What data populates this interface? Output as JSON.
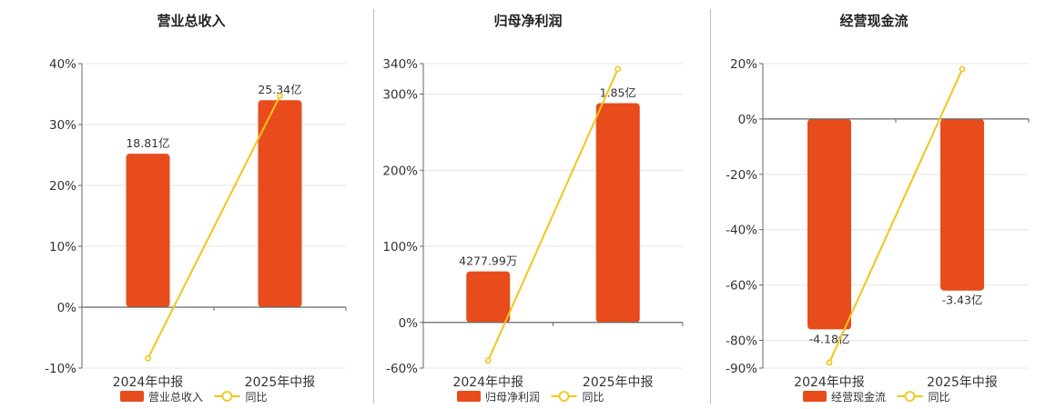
{
  "colors": {
    "bar": "#e84c1c",
    "line": "#f0c619",
    "axis": "#666666",
    "grid": "#e4e4e4",
    "text": "#333333"
  },
  "chart_data": [
    {
      "type": "bar",
      "title": "营业总收入",
      "categories": [
        "2024年中报",
        "2025年中报"
      ],
      "ylim": [
        -10,
        40
      ],
      "yticks": [
        "-10%",
        "0%",
        "10%",
        "20%",
        "30%",
        "40%"
      ],
      "ytick_values": [
        -10,
        0,
        10,
        20,
        30,
        40
      ],
      "series": [
        {
          "name": "营业总收入",
          "kind": "bar",
          "values": [
            25.2,
            34.0
          ],
          "labels": [
            "18.81亿",
            "25.34亿"
          ]
        },
        {
          "name": "同比",
          "kind": "line",
          "values": [
            -8.4,
            34.7
          ]
        }
      ],
      "grid": true,
      "legend": "bottom"
    },
    {
      "type": "bar",
      "title": "归母净利润",
      "categories": [
        "2024年中报",
        "2025年中报"
      ],
      "ylim": [
        -60,
        340
      ],
      "yticks": [
        "-60%",
        "0%",
        "100%",
        "200%",
        "300%",
        "340%"
      ],
      "ytick_values": [
        -60,
        0,
        100,
        200,
        300,
        340
      ],
      "series": [
        {
          "name": "归母净利润",
          "kind": "bar",
          "values": [
            67,
            288
          ],
          "labels": [
            "4277.99万",
            "1.85亿"
          ]
        },
        {
          "name": "同比",
          "kind": "line",
          "values": [
            -50,
            333
          ]
        }
      ],
      "grid": true,
      "legend": "bottom"
    },
    {
      "type": "bar",
      "title": "经营现金流",
      "categories": [
        "2024年中报",
        "2025年中报"
      ],
      "ylim": [
        -90,
        20
      ],
      "yticks": [
        "-90%",
        "-80%",
        "-60%",
        "-40%",
        "-20%",
        "0%",
        "20%"
      ],
      "ytick_values": [
        -90,
        -80,
        -60,
        -40,
        -20,
        0,
        20
      ],
      "series": [
        {
          "name": "经营现金流",
          "kind": "bar",
          "values": [
            -76,
            -62
          ],
          "labels": [
            "-4.18亿",
            "-3.43亿"
          ]
        },
        {
          "name": "同比",
          "kind": "line",
          "values": [
            -88,
            18
          ]
        }
      ],
      "grid": true,
      "legend": "bottom"
    }
  ]
}
